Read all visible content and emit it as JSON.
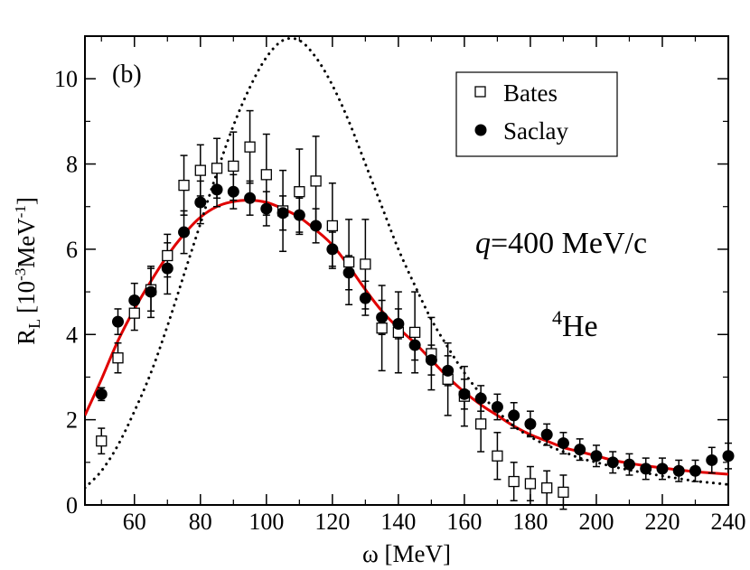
{
  "chart_data": {
    "type": "scatter",
    "panel_label": "(b)",
    "xlabel": "ω  [MeV]",
    "ylabel_main": "R",
    "ylabel_sub": "L",
    "ylabel_units_pre": "[10",
    "ylabel_exp1": "-3",
    "ylabel_units_mid": "MeV",
    "ylabel_exp2": "-1",
    "ylabel_units_post": "]",
    "xlim": [
      45,
      240
    ],
    "ylim": [
      0,
      11
    ],
    "xticks": [
      60,
      80,
      100,
      120,
      140,
      160,
      180,
      200,
      220,
      240
    ],
    "yticks": [
      0,
      2,
      4,
      6,
      8,
      10
    ],
    "annotations": {
      "q_symbol": "q",
      "q_value": "=400 MeV/c",
      "nucleus_mass": "4",
      "nucleus_symbol": "He"
    },
    "legend": {
      "position": "top-right",
      "entries": [
        "Bates",
        "Saclay"
      ]
    },
    "series": [
      {
        "name": "Bates",
        "marker": "open-square",
        "color": "#000000",
        "points": [
          {
            "x": 50,
            "y": 1.5,
            "err": 0.3
          },
          {
            "x": 55,
            "y": 3.45,
            "err": 0.35
          },
          {
            "x": 60,
            "y": 4.5,
            "err": 0.4
          },
          {
            "x": 65,
            "y": 5.05,
            "err": 0.5
          },
          {
            "x": 70,
            "y": 5.85,
            "err": 0.5
          },
          {
            "x": 75,
            "y": 7.5,
            "err": 0.7
          },
          {
            "x": 80,
            "y": 7.85,
            "err": 0.6
          },
          {
            "x": 85,
            "y": 7.9,
            "err": 0.7
          },
          {
            "x": 90,
            "y": 7.95,
            "err": 0.8
          },
          {
            "x": 95,
            "y": 8.4,
            "err": 0.85
          },
          {
            "x": 100,
            "y": 7.75,
            "err": 0.95
          },
          {
            "x": 105,
            "y": 6.9,
            "err": 0.95
          },
          {
            "x": 110,
            "y": 7.35,
            "err": 1.0
          },
          {
            "x": 115,
            "y": 7.6,
            "err": 1.05
          },
          {
            "x": 120,
            "y": 6.55,
            "err": 1.0
          },
          {
            "x": 125,
            "y": 5.7,
            "err": 1.0
          },
          {
            "x": 130,
            "y": 5.65,
            "err": 1.05
          },
          {
            "x": 135,
            "y": 4.15,
            "err": 1.0
          },
          {
            "x": 140,
            "y": 4.05,
            "err": 0.95
          },
          {
            "x": 145,
            "y": 4.05,
            "err": 0.95
          },
          {
            "x": 150,
            "y": 3.55,
            "err": 0.85
          },
          {
            "x": 155,
            "y": 2.95,
            "err": 0.85
          },
          {
            "x": 160,
            "y": 2.55,
            "err": 0.7
          },
          {
            "x": 165,
            "y": 1.9,
            "err": 0.65
          },
          {
            "x": 170,
            "y": 1.15,
            "err": 0.55
          },
          {
            "x": 175,
            "y": 0.55,
            "err": 0.45
          },
          {
            "x": 180,
            "y": 0.5,
            "err": 0.4
          },
          {
            "x": 185,
            "y": 0.4,
            "err": 0.4
          },
          {
            "x": 190,
            "y": 0.3,
            "err": 0.4
          }
        ]
      },
      {
        "name": "Saclay",
        "marker": "filled-circle",
        "color": "#000000",
        "points": [
          {
            "x": 50,
            "y": 2.6,
            "err": 0.15
          },
          {
            "x": 55,
            "y": 4.3,
            "err": 0.3
          },
          {
            "x": 60,
            "y": 4.8,
            "err": 0.4
          },
          {
            "x": 65,
            "y": 5.0,
            "err": 0.6
          },
          {
            "x": 70,
            "y": 5.55,
            "err": 0.6
          },
          {
            "x": 75,
            "y": 6.4,
            "err": 0.5
          },
          {
            "x": 80,
            "y": 7.1,
            "err": 0.5
          },
          {
            "x": 85,
            "y": 7.4,
            "err": 0.4
          },
          {
            "x": 90,
            "y": 7.35,
            "err": 0.4
          },
          {
            "x": 95,
            "y": 7.2,
            "err": 0.4
          },
          {
            "x": 100,
            "y": 6.95,
            "err": 0.4
          },
          {
            "x": 105,
            "y": 6.85,
            "err": 0.4
          },
          {
            "x": 110,
            "y": 6.8,
            "err": 0.4
          },
          {
            "x": 115,
            "y": 6.55,
            "err": 0.4
          },
          {
            "x": 120,
            "y": 6.0,
            "err": 0.4
          },
          {
            "x": 125,
            "y": 5.45,
            "err": 0.4
          },
          {
            "x": 130,
            "y": 4.85,
            "err": 0.4
          },
          {
            "x": 135,
            "y": 4.4,
            "err": 0.4
          },
          {
            "x": 140,
            "y": 4.25,
            "err": 0.35
          },
          {
            "x": 145,
            "y": 3.75,
            "err": 0.35
          },
          {
            "x": 150,
            "y": 3.4,
            "err": 0.35
          },
          {
            "x": 155,
            "y": 3.15,
            "err": 0.35
          },
          {
            "x": 160,
            "y": 2.6,
            "err": 0.35
          },
          {
            "x": 165,
            "y": 2.5,
            "err": 0.3
          },
          {
            "x": 170,
            "y": 2.3,
            "err": 0.3
          },
          {
            "x": 175,
            "y": 2.1,
            "err": 0.3
          },
          {
            "x": 180,
            "y": 1.9,
            "err": 0.3
          },
          {
            "x": 185,
            "y": 1.65,
            "err": 0.25
          },
          {
            "x": 190,
            "y": 1.45,
            "err": 0.25
          },
          {
            "x": 195,
            "y": 1.3,
            "err": 0.25
          },
          {
            "x": 200,
            "y": 1.15,
            "err": 0.25
          },
          {
            "x": 205,
            "y": 1.0,
            "err": 0.25
          },
          {
            "x": 210,
            "y": 0.95,
            "err": 0.25
          },
          {
            "x": 215,
            "y": 0.85,
            "err": 0.25
          },
          {
            "x": 220,
            "y": 0.85,
            "err": 0.25
          },
          {
            "x": 225,
            "y": 0.8,
            "err": 0.25
          },
          {
            "x": 230,
            "y": 0.8,
            "err": 0.25
          },
          {
            "x": 235,
            "y": 1.05,
            "err": 0.3
          },
          {
            "x": 240,
            "y": 1.15,
            "err": 0.3
          }
        ]
      }
    ],
    "curves": [
      {
        "style": "solid",
        "color": "#e00000",
        "points": [
          [
            45,
            2.1
          ],
          [
            50,
            2.95
          ],
          [
            55,
            3.85
          ],
          [
            60,
            4.6
          ],
          [
            65,
            5.25
          ],
          [
            70,
            5.85
          ],
          [
            75,
            6.35
          ],
          [
            80,
            6.75
          ],
          [
            85,
            7.0
          ],
          [
            90,
            7.12
          ],
          [
            95,
            7.15
          ],
          [
            100,
            7.1
          ],
          [
            105,
            6.95
          ],
          [
            110,
            6.75
          ],
          [
            115,
            6.45
          ],
          [
            120,
            6.1
          ],
          [
            125,
            5.6
          ],
          [
            130,
            5.05
          ],
          [
            135,
            4.55
          ],
          [
            140,
            4.15
          ],
          [
            145,
            3.8
          ],
          [
            150,
            3.4
          ],
          [
            155,
            3.0
          ],
          [
            160,
            2.65
          ],
          [
            165,
            2.35
          ],
          [
            170,
            2.1
          ],
          [
            175,
            1.85
          ],
          [
            180,
            1.65
          ],
          [
            185,
            1.5
          ],
          [
            190,
            1.35
          ],
          [
            195,
            1.25
          ],
          [
            200,
            1.15
          ],
          [
            205,
            1.05
          ],
          [
            210,
            0.98
          ],
          [
            215,
            0.92
          ],
          [
            220,
            0.87
          ],
          [
            225,
            0.82
          ],
          [
            230,
            0.78
          ],
          [
            235,
            0.75
          ],
          [
            240,
            0.72
          ]
        ]
      },
      {
        "style": "dotted",
        "color": "#000000",
        "points": [
          [
            45,
            0.4
          ],
          [
            50,
            0.8
          ],
          [
            55,
            1.4
          ],
          [
            60,
            2.2
          ],
          [
            65,
            3.1
          ],
          [
            70,
            4.2
          ],
          [
            75,
            5.4
          ],
          [
            80,
            6.6
          ],
          [
            85,
            7.8
          ],
          [
            90,
            8.9
          ],
          [
            95,
            9.8
          ],
          [
            100,
            10.5
          ],
          [
            105,
            10.9
          ],
          [
            110,
            10.9
          ],
          [
            115,
            10.5
          ],
          [
            120,
            9.85
          ],
          [
            125,
            9.0
          ],
          [
            130,
            8.0
          ],
          [
            135,
            7.0
          ],
          [
            140,
            6.0
          ],
          [
            145,
            5.15
          ],
          [
            150,
            4.35
          ],
          [
            155,
            3.7
          ],
          [
            160,
            3.1
          ],
          [
            165,
            2.6
          ],
          [
            170,
            2.2
          ],
          [
            175,
            1.85
          ],
          [
            180,
            1.6
          ],
          [
            185,
            1.4
          ],
          [
            190,
            1.25
          ],
          [
            195,
            1.1
          ],
          [
            200,
            1.0
          ],
          [
            205,
            0.9
          ],
          [
            210,
            0.82
          ],
          [
            215,
            0.75
          ],
          [
            220,
            0.68
          ],
          [
            225,
            0.62
          ],
          [
            230,
            0.56
          ],
          [
            235,
            0.52
          ],
          [
            240,
            0.48
          ]
        ]
      }
    ]
  }
}
